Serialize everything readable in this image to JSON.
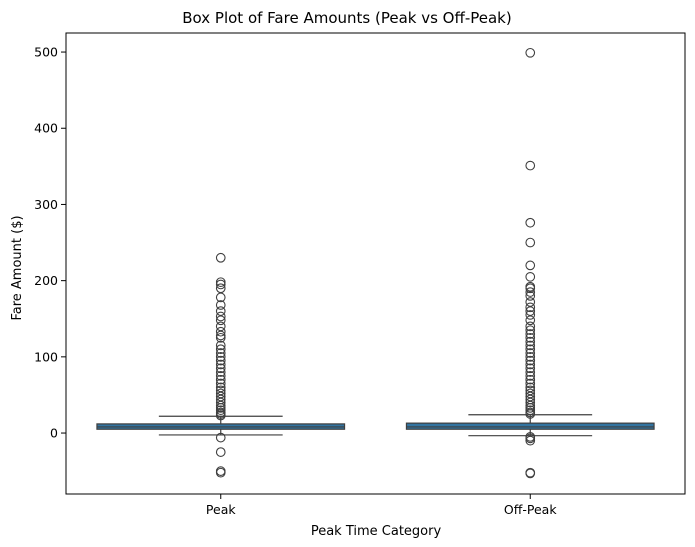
{
  "chart_data": {
    "type": "box",
    "title": "Box Plot of Fare Amounts (Peak vs Off-Peak)",
    "xlabel": "Peak Time Category",
    "ylabel": "Fare Amount ($)",
    "categories": [
      "Peak",
      "Off-Peak"
    ],
    "ylim": [
      -80,
      525
    ],
    "yticks": [
      0,
      100,
      200,
      300,
      400,
      500
    ],
    "grid": false,
    "box_color": "#3274a1",
    "boxes": [
      {
        "category": "Peak",
        "q1": 5,
        "median": 8,
        "q3": 12,
        "whisker_low": -2.5,
        "whisker_high": 22,
        "outliers": [
          -6,
          -25,
          -50,
          -52,
          23,
          25,
          27,
          30,
          33,
          36,
          40,
          44,
          48,
          52,
          56,
          60,
          65,
          70,
          75,
          80,
          85,
          90,
          95,
          100,
          105,
          110,
          115,
          125,
          128,
          133,
          140,
          148,
          153,
          160,
          168,
          178,
          190,
          195,
          198,
          230
        ]
      },
      {
        "category": "Off-Peak",
        "q1": 5,
        "median": 8,
        "q3": 13,
        "whisker_low": -3.5,
        "whisker_high": 24,
        "outliers": [
          -5,
          -7,
          -10,
          -52,
          -53,
          25,
          27,
          30,
          33,
          36,
          40,
          44,
          48,
          52,
          56,
          60,
          65,
          70,
          75,
          80,
          85,
          90,
          95,
          100,
          105,
          110,
          115,
          120,
          125,
          130,
          135,
          140,
          148,
          155,
          160,
          165,
          172,
          180,
          185,
          190,
          192,
          205,
          220,
          250,
          276,
          351,
          499
        ]
      }
    ]
  }
}
